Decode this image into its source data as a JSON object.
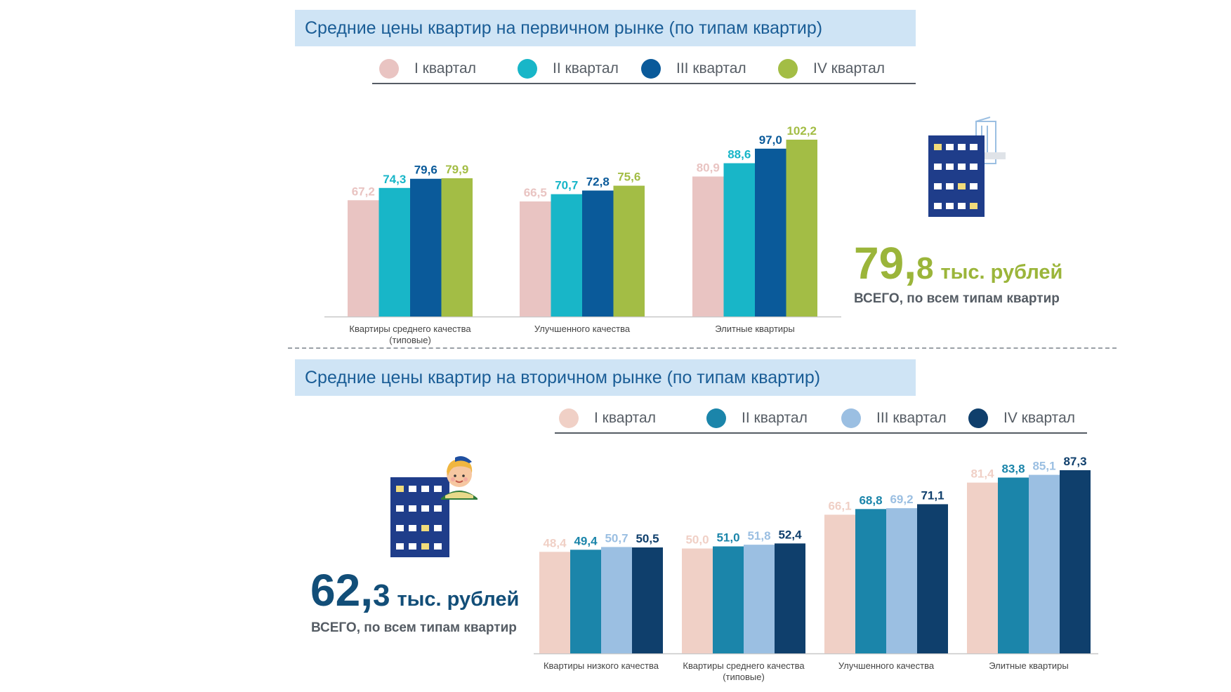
{
  "primary": {
    "title": "Средние цены квартир на первичном рынке (по типам квартир)",
    "legend": [
      {
        "label": "I квартал",
        "color": "#e9c4c2"
      },
      {
        "label": "II квартал",
        "color": "#18b6c8"
      },
      {
        "label": "III квартал",
        "color": "#0a5a9a"
      },
      {
        "label": "IV квартал",
        "color": "#a3bd45"
      }
    ],
    "total": {
      "int": "79,",
      "dec": "8",
      "unit": "тыс. рублей",
      "caption": "ВСЕГО, по всем типам квартир"
    }
  },
  "secondary": {
    "title": "Средние цены квартир на вторичном рынке (по типам квартир)",
    "legend": [
      {
        "label": "I квартал",
        "color": "#f0d0c6"
      },
      {
        "label": "II квартал",
        "color": "#1b85aa"
      },
      {
        "label": "III квартал",
        "color": "#9bbfe2"
      },
      {
        "label": "IV квартал",
        "color": "#0f3f6c"
      }
    ],
    "total": {
      "int": "62,",
      "dec": "3",
      "unit": "тыс. рублей",
      "caption": "ВСЕГО, по всем типам квартир"
    }
  },
  "chart_data": [
    {
      "type": "bar",
      "title": "Средние цены квартир на первичном рынке (по типам квартир)",
      "categories": [
        "Квартиры среднего качества (типовые)",
        "Улучшенного качества",
        "Элитные квартиры"
      ],
      "series": [
        {
          "name": "I квартал",
          "values": [
            67.2,
            66.5,
            80.9
          ],
          "labels": [
            "67,2",
            "66,5",
            "80,9"
          ]
        },
        {
          "name": "II квартал",
          "values": [
            74.3,
            70.7,
            88.6
          ],
          "labels": [
            "74,3",
            "70,7",
            "88,6"
          ]
        },
        {
          "name": "III квартал",
          "values": [
            79.6,
            72.8,
            97.0
          ],
          "labels": [
            "79,6",
            "72,8",
            "97,0"
          ]
        },
        {
          "name": "IV квартал",
          "values": [
            79.9,
            75.6,
            102.2
          ],
          "labels": [
            "79,9",
            "75,6",
            "102,2"
          ]
        }
      ],
      "ylim": [
        0,
        102.2
      ],
      "legend": "top",
      "grid": false
    },
    {
      "type": "bar",
      "title": "Средние цены квартир на вторичном рынке (по типам квартир)",
      "categories": [
        "Квартиры низкого качества",
        "Квартиры среднего качества (типовые)",
        "Улучшенного качества",
        "Элитные квартиры"
      ],
      "series": [
        {
          "name": "I квартал",
          "values": [
            48.4,
            50.0,
            66.1,
            81.4
          ],
          "labels": [
            "48,4",
            "50,0",
            "66,1",
            "81,4"
          ]
        },
        {
          "name": "II квартал",
          "values": [
            49.4,
            51.0,
            68.8,
            83.8
          ],
          "labels": [
            "49,4",
            "51,0",
            "68,8",
            "83,8"
          ]
        },
        {
          "name": "III квартал",
          "values": [
            50.7,
            51.8,
            69.2,
            85.1
          ],
          "labels": [
            "50,7",
            "51,8",
            "69,2",
            "85,1"
          ]
        },
        {
          "name": "IV квартал",
          "values": [
            50.5,
            52.4,
            71.1,
            87.3
          ],
          "labels": [
            "50,5",
            "52,4",
            "71,1",
            "87,3"
          ]
        }
      ],
      "ylim": [
        0,
        87.3
      ],
      "legend": "top",
      "grid": false
    }
  ]
}
